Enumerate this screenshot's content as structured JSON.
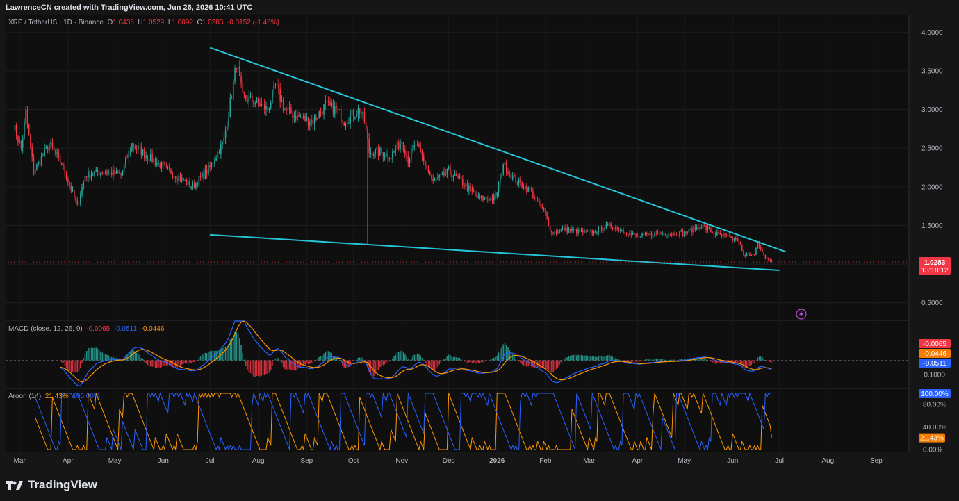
{
  "watermark": "LawrenceCN created with TradingView.com, Jun 26, 2026 10:41 UTC",
  "symbol": {
    "name": "XRP / TetherUS · 1D · Binance",
    "o_key": "O",
    "o": "1.0436",
    "h_key": "H",
    "h": "1.0529",
    "l_key": "L",
    "l": "1.0092",
    "c_key": "C",
    "c": "1.0283",
    "change": "-0.0152 (-1.46%)"
  },
  "price_tag": {
    "price": "1.0283",
    "countdown": "13:18:12"
  },
  "macd_label": {
    "name": "MACD (close, 12, 26, 9)",
    "v1": "-0.0065",
    "v2": "-0.0511",
    "v3": "-0.0446"
  },
  "aroon_label": {
    "name": "Aroon (14)",
    "up": "21.43%",
    "down": "100.00%"
  },
  "brand": "TradingView",
  "colors": {
    "up": "#26a69a",
    "down": "#f23645",
    "trendline": "#26c6da",
    "macd": "#2962ff",
    "signal": "#ff9800"
  },
  "chart_data": [
    {
      "type": "candlestick",
      "title": "XRP / TetherUS · 1D · Binance",
      "y_ticks": [
        "4.0000",
        "3.5000",
        "3.0000",
        "2.5000",
        "2.0000",
        "1.5000",
        "1.0000",
        "0.5000"
      ],
      "ylim": [
        0.3,
        4.2
      ],
      "x_ticks": [
        "Mar",
        "Apr",
        "May",
        "Jun",
        "Jul",
        "Aug",
        "Sep",
        "Oct",
        "Nov",
        "Dec",
        "2026",
        "Feb",
        "Mar",
        "Apr",
        "May",
        "Jun",
        "Jul",
        "Aug",
        "Sep"
      ],
      "price_path": [
        [
          "2025-02-25",
          2.8
        ],
        [
          "2025-03-02",
          2.5
        ],
        [
          "2025-03-05",
          2.95
        ],
        [
          "2025-03-10",
          2.2
        ],
        [
          "2025-03-20",
          2.55
        ],
        [
          "2025-03-28",
          2.3
        ],
        [
          "2025-04-07",
          1.75
        ],
        [
          "2025-04-12",
          2.15
        ],
        [
          "2025-04-25",
          2.2
        ],
        [
          "2025-05-05",
          2.15
        ],
        [
          "2025-05-12",
          2.55
        ],
        [
          "2025-05-22",
          2.4
        ],
        [
          "2025-06-05",
          2.2
        ],
        [
          "2025-06-20",
          2.0
        ],
        [
          "2025-07-01",
          2.25
        ],
        [
          "2025-07-10",
          2.6
        ],
        [
          "2025-07-15",
          3.2
        ],
        [
          "2025-07-18",
          3.6
        ],
        [
          "2025-07-22",
          3.15
        ],
        [
          "2025-07-30",
          3.1
        ],
        [
          "2025-08-07",
          3.0
        ],
        [
          "2025-08-12",
          3.3
        ],
        [
          "2025-08-18",
          3.0
        ],
        [
          "2025-08-26",
          2.9
        ],
        [
          "2025-09-05",
          2.85
        ],
        [
          "2025-09-13",
          3.05
        ],
        [
          "2025-09-20",
          3.0
        ],
        [
          "2025-09-25",
          2.85
        ],
        [
          "2025-10-05",
          3.0
        ],
        [
          "2025-10-08",
          2.85
        ],
        [
          "2025-10-11",
          2.45
        ],
        [
          "2025-10-18",
          2.45
        ],
        [
          "2025-10-25",
          2.4
        ],
        [
          "2025-11-01",
          2.6
        ],
        [
          "2025-11-05",
          2.35
        ],
        [
          "2025-11-10",
          2.55
        ],
        [
          "2025-11-18",
          2.2
        ],
        [
          "2025-11-21",
          2.05
        ],
        [
          "2025-12-01",
          2.2
        ],
        [
          "2025-12-10",
          2.05
        ],
        [
          "2025-12-20",
          1.85
        ],
        [
          "2025-12-31",
          1.85
        ],
        [
          "2026-01-05",
          2.3
        ],
        [
          "2026-01-12",
          2.1
        ],
        [
          "2026-01-22",
          1.95
        ],
        [
          "2026-02-01",
          1.65
        ],
        [
          "2026-02-05",
          1.4
        ],
        [
          "2026-02-12",
          1.45
        ],
        [
          "2026-03-01",
          1.4
        ],
        [
          "2026-03-15",
          1.5
        ],
        [
          "2026-04-01",
          1.35
        ],
        [
          "2026-04-15",
          1.4
        ],
        [
          "2026-05-01",
          1.4
        ],
        [
          "2026-05-12",
          1.5
        ],
        [
          "2026-05-20",
          1.4
        ],
        [
          "2026-06-05",
          1.3
        ],
        [
          "2026-06-08",
          1.1
        ],
        [
          "2026-06-15",
          1.15
        ],
        [
          "2026-06-17",
          1.25
        ],
        [
          "2026-06-21",
          1.1
        ],
        [
          "2026-06-26",
          1.0283
        ]
      ],
      "spike_low": {
        "date": "2025-10-10",
        "value": 1.25
      },
      "trendlines": [
        {
          "from": [
            "2025-07-01",
            3.8
          ],
          "to": [
            "2026-07-05",
            1.16
          ]
        },
        {
          "from": [
            "2025-07-01",
            1.38
          ],
          "to": [
            "2026-07-01",
            0.92
          ]
        }
      ],
      "last_price": 1.0283
    },
    {
      "type": "macd",
      "y_ticks": [
        "-0.1000"
      ],
      "ylim": [
        -0.19,
        0.28
      ],
      "values": {
        "histogram": -0.0065,
        "signal": -0.0446,
        "macd": -0.0511
      }
    },
    {
      "type": "aroon",
      "y_ticks": [
        "80.00%",
        "40.00%",
        "0.00%"
      ],
      "ylim": [
        0,
        100
      ],
      "values": {
        "up": 21.43,
        "down": 100.0
      }
    }
  ]
}
